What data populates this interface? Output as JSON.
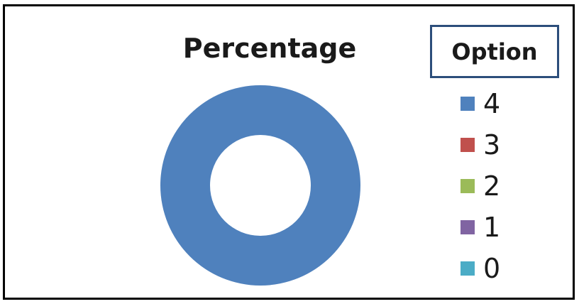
{
  "chart_data": {
    "type": "pie",
    "variant": "donut",
    "title": "Percentage",
    "legend_title": "Option",
    "legend_placement": "right",
    "categories": [
      "4",
      "3",
      "2",
      "1",
      "0"
    ],
    "values": [
      100,
      0,
      0,
      0,
      0
    ],
    "colors": [
      "#4f81bd",
      "#c0504d",
      "#9bbb59",
      "#8064a2",
      "#4bacc6"
    ]
  }
}
